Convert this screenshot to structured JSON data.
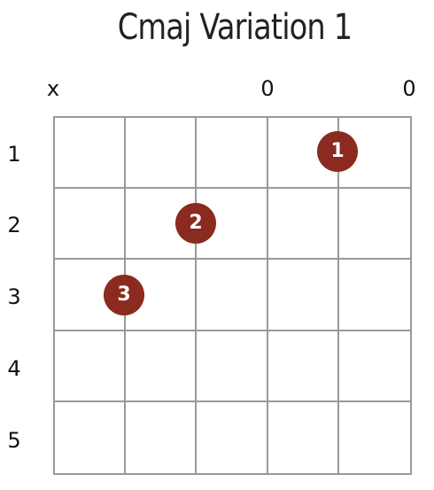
{
  "title": "Cmaj Variation 1",
  "string_markers": [
    "x",
    "",
    "",
    "0",
    "",
    "0"
  ],
  "fret_numbers": [
    "1",
    "2",
    "3",
    "4",
    "5"
  ],
  "fingers": [
    {
      "label": "1",
      "string": 5,
      "fret": 1
    },
    {
      "label": "2",
      "string": 3,
      "fret": 2
    },
    {
      "label": "3",
      "string": 2,
      "fret": 3
    }
  ],
  "colors": {
    "finger_fill": "#8b2a1e",
    "finger_text": "#ffffff",
    "grid_line": "#999999",
    "text": "#111111"
  }
}
